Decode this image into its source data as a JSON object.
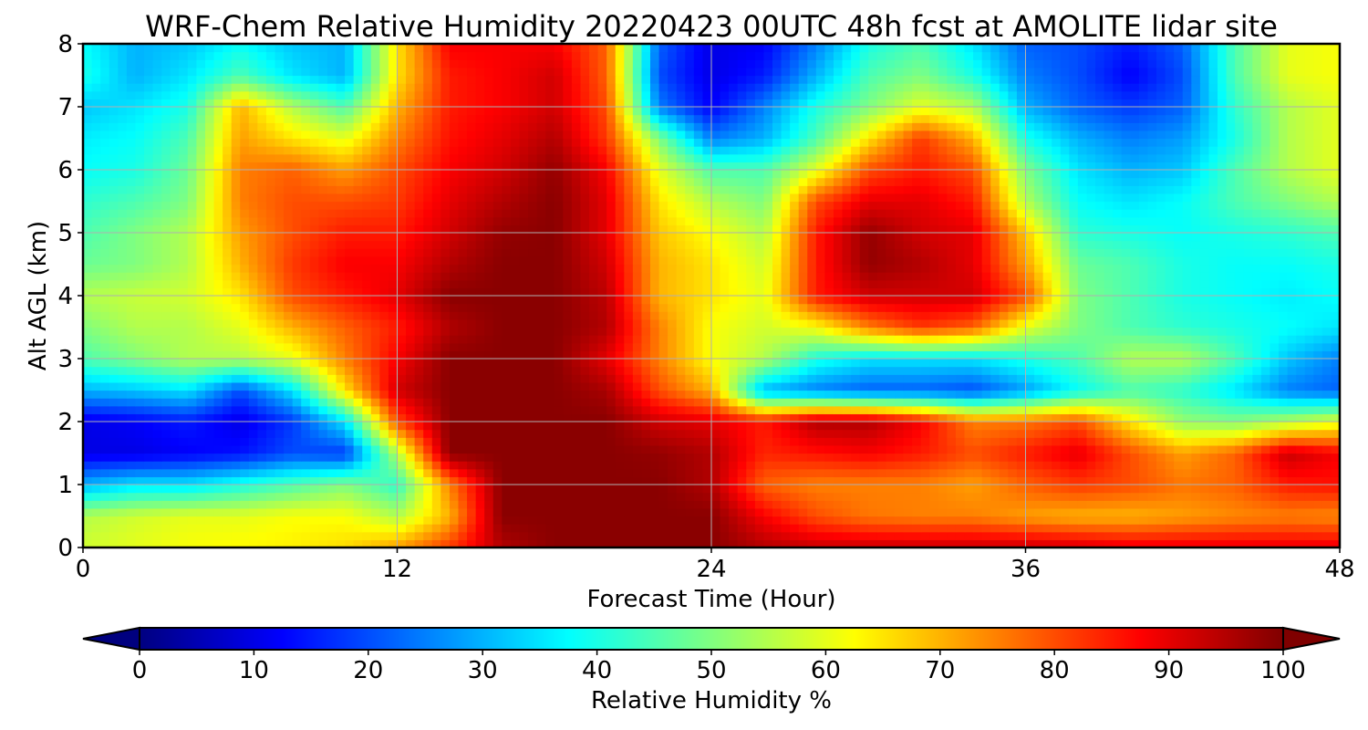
{
  "chart_data": {
    "type": "heatmap",
    "title": "WRF-Chem Relative Humidity 20220423 00UTC 48h fcst at AMOLITE lidar site",
    "xlabel": "Forecast Time (Hour)",
    "ylabel": "Alt AGL (km)",
    "xlim": [
      0,
      48
    ],
    "ylim": [
      0,
      8
    ],
    "xticks": [
      0,
      12,
      24,
      36,
      48
    ],
    "yticks": [
      0,
      1,
      2,
      3,
      4,
      5,
      6,
      7,
      8
    ],
    "grid": true,
    "colormap": "jet",
    "colorbar": {
      "label": "Relative Humidity %",
      "range": [
        0,
        100
      ],
      "ticks": [
        0,
        10,
        20,
        30,
        40,
        50,
        60,
        70,
        80,
        90,
        100
      ],
      "extend": "both",
      "orientation": "horizontal"
    },
    "grid_x": [
      0,
      2,
      4,
      6,
      8,
      10,
      12,
      14,
      16,
      18,
      20,
      22,
      24,
      26,
      28,
      30,
      32,
      34,
      36,
      38,
      40,
      42,
      44,
      46,
      48
    ],
    "grid_y": [
      0,
      0.5,
      1,
      1.5,
      2,
      2.5,
      3,
      3.5,
      4,
      4.5,
      5,
      5.5,
      6,
      6.5,
      7,
      7.5,
      8
    ],
    "values": [
      [
        58,
        60,
        62,
        63,
        64,
        66,
        72,
        82,
        95,
        99,
        99,
        99,
        99,
        95,
        93,
        93,
        93,
        93,
        93,
        92,
        90,
        90,
        90,
        90,
        90
      ],
      [
        55,
        58,
        60,
        60,
        62,
        62,
        55,
        70,
        99,
        99,
        99,
        99,
        99,
        88,
        80,
        76,
        75,
        75,
        72,
        70,
        70,
        72,
        74,
        75,
        74
      ],
      [
        30,
        35,
        35,
        40,
        45,
        50,
        42,
        75,
        99,
        99,
        99,
        99,
        95,
        78,
        75,
        75,
        75,
        72,
        78,
        82,
        80,
        76,
        78,
        85,
        86
      ],
      [
        10,
        10,
        12,
        14,
        20,
        18,
        55,
        99,
        99,
        99,
        99,
        98,
        95,
        84,
        86,
        88,
        85,
        80,
        85,
        90,
        80,
        72,
        78,
        93,
        88
      ],
      [
        10,
        12,
        15,
        10,
        18,
        35,
        80,
        99,
        99,
        99,
        99,
        92,
        90,
        85,
        95,
        95,
        88,
        75,
        76,
        80,
        65,
        52,
        50,
        55,
        60
      ],
      [
        30,
        32,
        35,
        20,
        35,
        65,
        92,
        99,
        99,
        99,
        96,
        80,
        70,
        30,
        25,
        22,
        22,
        20,
        28,
        38,
        45,
        42,
        35,
        25,
        22
      ],
      [
        45,
        50,
        55,
        55,
        60,
        75,
        88,
        99,
        99,
        99,
        90,
        75,
        62,
        55,
        40,
        35,
        35,
        35,
        40,
        45,
        55,
        55,
        45,
        32,
        25
      ],
      [
        50,
        55,
        55,
        60,
        70,
        78,
        85,
        95,
        99,
        99,
        95,
        75,
        62,
        58,
        62,
        75,
        82,
        78,
        60,
        50,
        45,
        42,
        40,
        38,
        35
      ],
      [
        55,
        57,
        58,
        65,
        80,
        85,
        90,
        99,
        99,
        99,
        94,
        70,
        65,
        60,
        85,
        92,
        92,
        92,
        80,
        50,
        45,
        40,
        38,
        36,
        38
      ],
      [
        48,
        50,
        55,
        70,
        82,
        88,
        88,
        95,
        99,
        99,
        92,
        70,
        65,
        58,
        85,
        98,
        95,
        90,
        72,
        48,
        45,
        40,
        38,
        38,
        40
      ],
      [
        45,
        50,
        55,
        72,
        80,
        85,
        85,
        92,
        98,
        99,
        90,
        68,
        62,
        55,
        85,
        98,
        92,
        90,
        68,
        42,
        40,
        38,
        40,
        42,
        45
      ],
      [
        42,
        45,
        50,
        75,
        80,
        80,
        82,
        90,
        95,
        99,
        90,
        65,
        55,
        50,
        80,
        90,
        90,
        85,
        55,
        38,
        35,
        38,
        45,
        50,
        55
      ],
      [
        38,
        40,
        48,
        75,
        78,
        72,
        80,
        88,
        92,
        98,
        88,
        60,
        45,
        45,
        60,
        80,
        85,
        80,
        50,
        35,
        30,
        32,
        45,
        55,
        60
      ],
      [
        36,
        38,
        45,
        72,
        65,
        60,
        75,
        86,
        90,
        95,
        82,
        50,
        25,
        30,
        45,
        65,
        82,
        70,
        40,
        30,
        25,
        28,
        40,
        55,
        60
      ],
      [
        32,
        35,
        40,
        70,
        55,
        45,
        70,
        85,
        88,
        92,
        80,
        25,
        12,
        25,
        40,
        50,
        60,
        55,
        30,
        22,
        18,
        22,
        42,
        55,
        60
      ],
      [
        40,
        30,
        35,
        45,
        35,
        30,
        65,
        85,
        88,
        92,
        78,
        20,
        10,
        15,
        30,
        45,
        50,
        40,
        25,
        20,
        12,
        20,
        45,
        60,
        62
      ],
      [
        38,
        30,
        32,
        38,
        32,
        30,
        65,
        88,
        88,
        88,
        78,
        22,
        10,
        12,
        25,
        40,
        45,
        35,
        22,
        20,
        15,
        22,
        45,
        60,
        62
      ]
    ]
  }
}
